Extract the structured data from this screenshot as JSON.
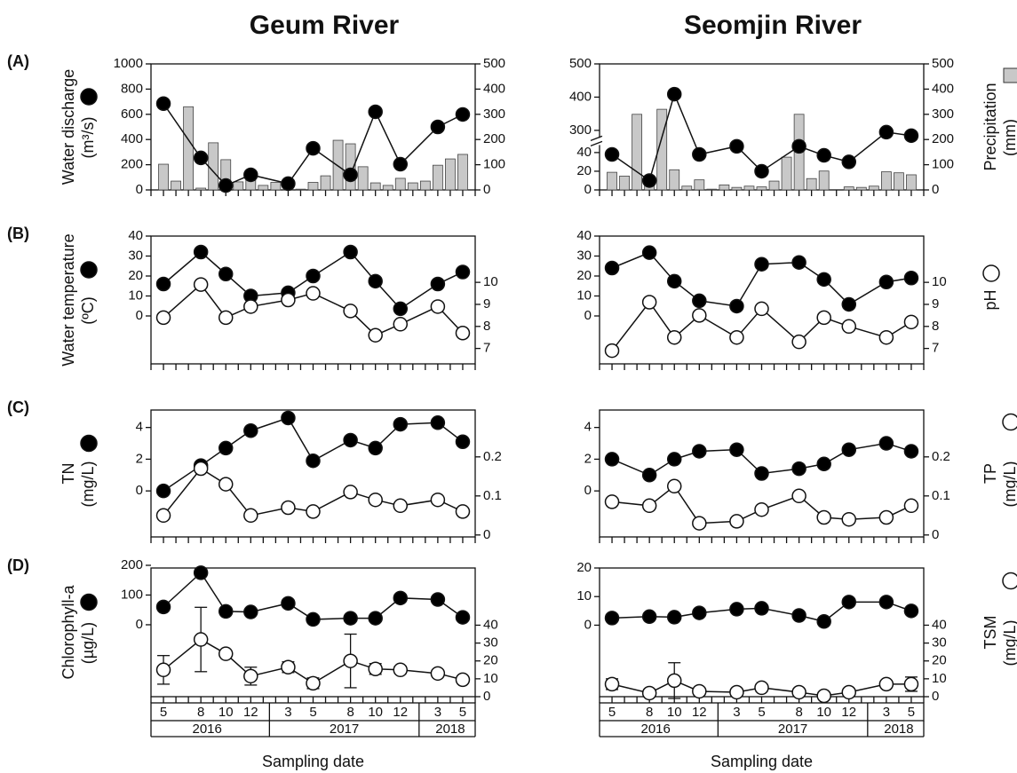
{
  "figure": {
    "columns": [
      "Geum River",
      "Seomjin River"
    ],
    "x_label": "Sampling date",
    "dates": [
      {
        "year": 2016,
        "months": [
          5,
          8,
          10,
          12
        ]
      },
      {
        "year": 2017,
        "months": [
          3,
          5,
          8,
          10,
          12
        ]
      },
      {
        "year": 2018,
        "months": [
          3,
          5
        ]
      }
    ]
  },
  "chart_data": [
    {
      "type": "line",
      "panel": "(A)",
      "ylabel": [
        "Water discharge",
        "(m³/s)"
      ],
      "ylim": [
        0,
        1000
      ],
      "yticks": [
        0,
        200,
        400,
        600,
        800,
        1000
      ],
      "y2lim": [
        0,
        500
      ],
      "y2ticks": [
        0,
        100,
        200,
        300,
        400,
        500
      ],
      "series": [
        {
          "type": "bar",
          "color": "#c8c8c8",
          "axis": "y2",
          "values": [
            102,
            35,
            330,
            7,
            187,
            120,
            32,
            56,
            18,
            30,
            14,
            3,
            30,
            56,
            197,
            183,
            92,
            28,
            18,
            46,
            28,
            35,
            98,
            123,
            141
          ]
        },
        {
          "color": "black",
          "values": [
            685,
            254,
            35,
            120,
            50,
            330,
            120,
            620,
            204,
            500,
            599
          ]
        }
      ]
    },
    {
      "type": "line",
      "panel": "(B)",
      "ylabel": [
        "Water temperature",
        "(ºC)"
      ],
      "ylim": [
        -24,
        40
      ],
      "yticks": [
        0,
        10,
        20,
        30,
        40
      ],
      "y2lim": [
        6.3,
        12.1
      ],
      "y2ticks": [
        7,
        8,
        9,
        10
      ],
      "series": [
        {
          "color": "black",
          "values": [
            16,
            32,
            21,
            10,
            11.6,
            20,
            32,
            17.4,
            3.6,
            16,
            22
          ]
        },
        {
          "color": "white",
          "axis": "y2",
          "values": [
            8.4,
            9.9,
            8.4,
            8.9,
            9.2,
            9.5,
            8.7,
            7.6,
            8.1,
            8.9,
            7.7
          ]
        }
      ]
    },
    {
      "type": "line",
      "panel": "(C)",
      "ylabel": [
        "TN",
        "(mg/L)"
      ],
      "ylim": [
        -2.9,
        5.1
      ],
      "yticks": [
        0,
        2,
        4
      ],
      "y2lim": [
        -0.005,
        0.32
      ],
      "y2ticks": [
        0,
        0.1,
        0.2
      ],
      "series": [
        {
          "color": "black",
          "values": [
            0,
            1.6,
            2.7,
            3.8,
            4.6,
            1.9,
            3.2,
            2.7,
            4.2,
            4.3,
            3.1
          ]
        },
        {
          "color": "white",
          "axis": "y2",
          "values": [
            0.05,
            0.17,
            0.13,
            0.05,
            0.07,
            0.06,
            0.11,
            0.09,
            0.075,
            0.09,
            0.06
          ]
        }
      ]
    },
    {
      "type": "line",
      "panel": "(D)",
      "ylabel": [
        "Chlorophyll-a",
        "(µg/L)"
      ],
      "ylim": [
        -242,
        191
      ],
      "yticks": [
        0,
        100,
        200
      ],
      "y2lim": [
        0,
        72
      ],
      "y2ticks": [
        0,
        10,
        20,
        30,
        40
      ],
      "series": [
        {
          "color": "black",
          "values": [
            60,
            175,
            45,
            43,
            72,
            18,
            22,
            22,
            90,
            85,
            25
          ]
        },
        {
          "color": "white",
          "axis": "y2",
          "values": [
            15,
            32,
            24,
            11.5,
            16.5,
            7.5,
            20,
            15.5,
            15,
            13,
            9.5
          ],
          "errors": [
            8,
            18,
            null,
            5,
            3,
            3,
            15,
            3,
            2,
            null,
            null
          ]
        }
      ]
    },
    {
      "type": "line",
      "y2label": [
        "Precipitation",
        "(mm)"
      ],
      "ylim": [
        0,
        500
      ],
      "ybreak": [
        40,
        300
      ],
      "yticks": [
        0,
        20,
        40,
        300,
        400,
        500
      ],
      "y2lim": [
        0,
        500
      ],
      "y2ticks": [
        0,
        100,
        200,
        300,
        400,
        500
      ],
      "series": [
        {
          "type": "bar",
          "color": "#c8c8c8",
          "axis": "y2",
          "values": [
            70,
            55,
            300,
            45,
            320,
            80,
            15,
            40,
            3,
            20,
            10,
            15,
            12,
            35,
            130,
            300,
            45,
            75,
            0,
            12,
            10,
            15,
            72,
            68,
            60
          ]
        },
        {
          "color": "black",
          "values": [
            38,
            10,
            409,
            38,
            113,
            20,
            113,
            37,
            30,
            279,
            238
          ]
        }
      ]
    },
    {
      "type": "line",
      "y2label": [
        "pH"
      ],
      "ylim": [
        -24,
        40
      ],
      "yticks": [
        0,
        10,
        20,
        30,
        40
      ],
      "y2lim": [
        6.3,
        12.1
      ],
      "y2ticks": [
        7,
        8,
        9,
        10
      ],
      "series": [
        {
          "color": "black",
          "values": [
            24,
            31.7,
            17.4,
            7.6,
            4.9,
            25.9,
            26.8,
            18.3,
            5.8,
            17,
            19
          ]
        },
        {
          "color": "white",
          "axis": "y2",
          "values": [
            6.9,
            9.1,
            7.5,
            8.5,
            7.5,
            8.8,
            7.3,
            8.4,
            8,
            7.5,
            8.2
          ]
        }
      ]
    },
    {
      "type": "line",
      "y2label": [
        "TP",
        "(mg/L)"
      ],
      "ylim": [
        -2.9,
        5.1
      ],
      "yticks": [
        0,
        2,
        4
      ],
      "y2lim": [
        -0.005,
        0.32
      ],
      "y2ticks": [
        0,
        0.1,
        0.2
      ],
      "series": [
        {
          "color": "black",
          "values": [
            2,
            1,
            2,
            2.5,
            2.6,
            1.1,
            1.4,
            1.7,
            2.6,
            3,
            2.5
          ]
        },
        {
          "color": "white",
          "axis": "y2",
          "values": [
            0.085,
            0.075,
            0.125,
            0.03,
            0.035,
            0.065,
            0.1,
            0.045,
            0.04,
            0.045,
            0.075
          ]
        }
      ]
    },
    {
      "type": "line",
      "y2label": [
        "TSM",
        "(mg/L)"
      ],
      "ylim": [
        -25,
        20
      ],
      "yticks": [
        0,
        10,
        20
      ],
      "y2lim": [
        0,
        72
      ],
      "y2ticks": [
        0,
        10,
        20,
        30,
        40
      ],
      "series": [
        {
          "color": "black",
          "values": [
            2.5,
            3,
            2.8,
            4.3,
            5.6,
            5.9,
            3.4,
            1.3,
            8.1,
            8.1,
            5
          ]
        },
        {
          "color": "white",
          "axis": "y2",
          "values": [
            7,
            2,
            9,
            3,
            2.5,
            5,
            2.5,
            0.5,
            2.5,
            7,
            7
          ],
          "errors": [
            3,
            2,
            10,
            1,
            1,
            2,
            null,
            null,
            1,
            null,
            4
          ]
        }
      ]
    }
  ]
}
